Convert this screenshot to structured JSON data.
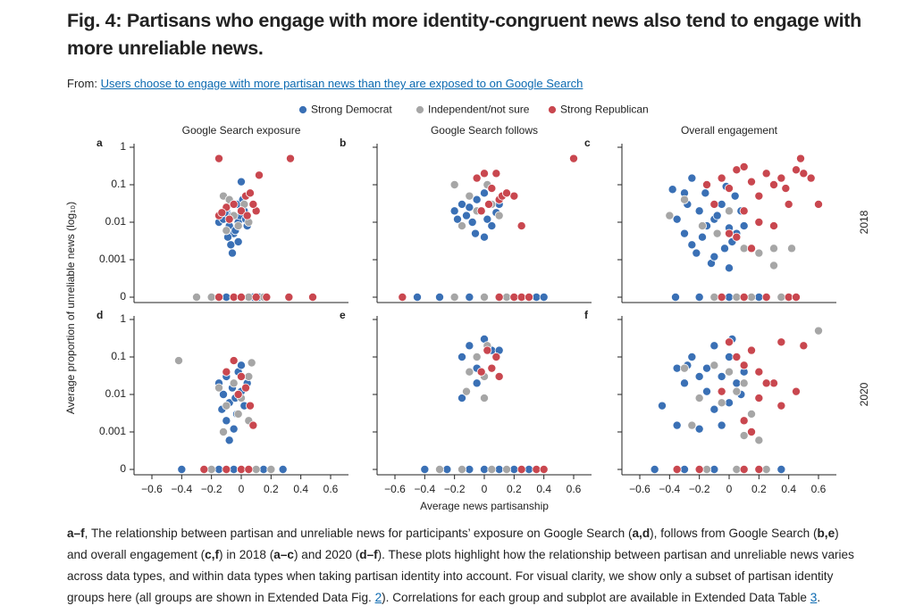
{
  "header": {
    "title": "Fig. 4: Partisans who engage with more identity-congruent news also tend to engage with more unreliable news.",
    "from_label": "From:",
    "link": "Users choose to engage with more partisan news than they are exposed to on Google Search"
  },
  "chart_data": {
    "type": "scatter",
    "yscale": "log",
    "series": [
      {
        "name": "Strong Democrat",
        "color": "#3a70b5"
      },
      {
        "name": "Independent/not sure",
        "color": "#a6a6a6"
      },
      {
        "name": "Strong Republican",
        "color": "#c9474f"
      }
    ],
    "columns": [
      "Google Search exposure",
      "Google Search follows",
      "Overall engagement"
    ],
    "rows": [
      "2018",
      "2020"
    ],
    "xlabel": "Average news partisanship",
    "ylabel": "Average proportion of unreliable news (log₁₀)",
    "xlim": [
      -0.72,
      0.72
    ],
    "xticks": [
      {
        "value": -0.6,
        "label": "−0.6"
      },
      {
        "value": -0.4,
        "label": "−0.4"
      },
      {
        "value": -0.2,
        "label": "−0.2"
      },
      0,
      0.2,
      0.4,
      0.6
    ],
    "ylim": [
      0,
      1
    ],
    "yticks": [
      0,
      0.001,
      0.01,
      0.1,
      1
    ],
    "panels": [
      {
        "label": "a",
        "points": [
          {
            "x": [
              -0.15,
              -0.12,
              -0.1,
              -0.08,
              -0.06,
              -0.05,
              -0.03,
              -0.02,
              0,
              0.02,
              0.04,
              -0.09,
              -0.07,
              -0.04,
              -0.01,
              0.01,
              -0.06,
              -0.02,
              -0.11,
              0.03,
              -0.1,
              -0.05,
              0,
              0.05,
              0.08,
              0.12
            ],
            "values": [
              0.01,
              0.012,
              0.02,
              0.008,
              0.015,
              0.005,
              0.03,
              0.01,
              0.12,
              0.02,
              0.008,
              0.004,
              0.0025,
              0.006,
              0.015,
              0.04,
              0.0015,
              0.003,
              0.018,
              0.012,
              0,
              0,
              0,
              0,
              0,
              0
            ]
          },
          {
            "x": [
              -0.12,
              -0.08,
              -0.05,
              -0.02,
              0.02,
              0.05,
              -0.1,
              0,
              -0.3,
              -0.2,
              -0.05,
              0.05,
              0.15
            ],
            "values": [
              0.05,
              0.04,
              0.015,
              0.008,
              0.03,
              0.01,
              0.006,
              0.02,
              0,
              0,
              0,
              0,
              0
            ]
          },
          {
            "x": [
              -0.15,
              -0.1,
              -0.05,
              0,
              0.03,
              0.06,
              0.1,
              0.12,
              -0.15,
              0.08,
              0.04,
              -0.08,
              -0.13,
              0.33,
              -0.15,
              -0.05,
              0,
              0.1,
              0.17,
              0.32,
              0.48
            ],
            "values": [
              0.015,
              0.025,
              0.03,
              0.02,
              0.05,
              0.06,
              0.02,
              0.18,
              0.5,
              0.03,
              0.015,
              0.012,
              0.018,
              0.5,
              0,
              0,
              0,
              0,
              0,
              0,
              0
            ]
          }
        ]
      },
      {
        "label": "b",
        "points": [
          {
            "x": [
              -0.2,
              -0.15,
              -0.12,
              -0.1,
              -0.08,
              -0.05,
              -0.03,
              0,
              0.02,
              0.05,
              0.08,
              -0.18,
              -0.06,
              0,
              0.1,
              -0.45,
              -0.3,
              -0.1,
              0,
              0.1,
              0.2,
              0.35,
              0.4
            ],
            "values": [
              0.02,
              0.03,
              0.015,
              0.025,
              0.01,
              0.04,
              0.02,
              0.06,
              0.012,
              0.008,
              0.018,
              0.012,
              0.005,
              0.004,
              0.03,
              0,
              0,
              0,
              0,
              0,
              0,
              0,
              0
            ]
          },
          {
            "x": [
              -0.2,
              -0.1,
              -0.05,
              0.02,
              0.05,
              -0.15,
              0.1,
              -0.2,
              0,
              0.15,
              0.3
            ],
            "values": [
              0.1,
              0.05,
              0.02,
              0.1,
              0.03,
              0.008,
              0.015,
              0,
              0,
              0,
              0
            ]
          },
          {
            "x": [
              -0.05,
              0,
              0.05,
              0.08,
              0.1,
              0.12,
              0.2,
              0.25,
              0.03,
              -0.02,
              0.15,
              0.6,
              -0.55,
              0.1,
              0.2,
              0.25,
              0.3
            ],
            "values": [
              0.15,
              0.2,
              0.08,
              0.2,
              0.04,
              0.05,
              0.05,
              0.008,
              0.03,
              0.02,
              0.06,
              0.5,
              0,
              0,
              0,
              0,
              0
            ]
          }
        ]
      },
      {
        "label": "c",
        "points": [
          {
            "x": [
              -0.38,
              -0.3,
              -0.3,
              -0.25,
              -0.2,
              -0.15,
              -0.1,
              -0.05,
              0,
              0.05,
              -0.35,
              -0.22,
              -0.18,
              -0.12,
              -0.08,
              -0.03,
              0.02,
              0.08,
              0.1,
              -0.28,
              -0.16,
              -0.02,
              0.04,
              -0.25,
              -0.1,
              0,
              -0.36,
              -0.2,
              -0.05,
              0,
              0.1,
              0.2
            ],
            "values": [
              0.075,
              0.06,
              0.005,
              0.15,
              0.02,
              0.008,
              0.012,
              0.03,
              0.007,
              0.005,
              0.012,
              0.0015,
              0.004,
              0.0008,
              0.015,
              0.002,
              0.003,
              0.02,
              0.008,
              0.03,
              0.06,
              0.09,
              0.05,
              0.0025,
              0.0012,
              0.0006,
              0,
              0,
              0,
              0,
              0,
              0
            ]
          },
          {
            "x": [
              -0.4,
              -0.3,
              -0.18,
              -0.08,
              0,
              0.1,
              0.2,
              0.3,
              0.42,
              0.3,
              -0.1,
              0.05,
              0.15,
              0.35
            ],
            "values": [
              0.015,
              0.04,
              0.008,
              0.005,
              0.02,
              0.002,
              0.0015,
              0.002,
              0.002,
              0.0007,
              0,
              0,
              0,
              0
            ]
          },
          {
            "x": [
              -0.15,
              -0.05,
              0,
              0.05,
              0.1,
              0.15,
              0.2,
              0.25,
              0.3,
              0.35,
              0.4,
              0.45,
              0.5,
              0.55,
              0.6,
              0.48,
              0.38,
              0.1,
              0.2,
              0.3,
              0.05,
              0.15,
              0,
              -0.1,
              -0.05,
              0.1,
              0.25,
              0.4,
              0.45
            ],
            "values": [
              0.1,
              0.15,
              0.08,
              0.25,
              0.3,
              0.12,
              0.05,
              0.2,
              0.1,
              0.15,
              0.03,
              0.25,
              0.2,
              0.15,
              0.03,
              0.5,
              0.08,
              0.02,
              0.01,
              0.008,
              0.004,
              0.002,
              0.005,
              0.03,
              0,
              0,
              0,
              0,
              0
            ]
          }
        ]
      },
      {
        "label": "d",
        "points": [
          {
            "x": [
              -0.15,
              -0.12,
              -0.1,
              -0.08,
              -0.06,
              -0.04,
              -0.02,
              0,
              0.02,
              0.04,
              -0.1,
              -0.05,
              -0.08,
              -0.03,
              -0.13,
              0,
              -0.4,
              -0.15,
              -0.05,
              0.05,
              0.15,
              0.28
            ],
            "values": [
              0.02,
              0.01,
              0.03,
              0.006,
              0.015,
              0.008,
              0.04,
              0.012,
              0.005,
              0.02,
              0.002,
              0.0012,
              0.0006,
              0.003,
              0.004,
              0.06,
              0,
              0,
              0,
              0,
              0,
              0
            ]
          },
          {
            "x": [
              -0.42,
              -0.15,
              -0.1,
              -0.05,
              0,
              0.05,
              0.07,
              -0.12,
              -0.02,
              0.05,
              -0.2,
              -0.1,
              0,
              0.1,
              0.2
            ],
            "values": [
              0.08,
              0.015,
              0.005,
              0.02,
              0.008,
              0.03,
              0.07,
              0.001,
              0.003,
              0.002,
              0,
              0,
              0,
              0,
              0
            ]
          },
          {
            "x": [
              -0.05,
              0,
              0.03,
              0.06,
              -0.02,
              0.08,
              -0.1,
              -0.25,
              -0.1,
              0,
              0.05
            ],
            "values": [
              0.08,
              0.03,
              0.015,
              0.005,
              0.01,
              0.0015,
              0.04,
              0,
              0,
              0,
              0
            ]
          }
        ]
      },
      {
        "label": "e",
        "points": [
          {
            "x": [
              -0.15,
              -0.1,
              -0.05,
              0,
              0.05,
              0.1,
              -0.15,
              -0.05,
              -0.4,
              -0.25,
              -0.1,
              0,
              0.1,
              0.2,
              0.3
            ],
            "values": [
              0.1,
              0.2,
              0.05,
              0.3,
              0.15,
              0.15,
              0.008,
              0.02,
              0,
              0,
              0,
              0,
              0,
              0,
              0
            ]
          },
          {
            "x": [
              -0.1,
              -0.05,
              0,
              0.02,
              -0.12,
              0,
              -0.3,
              -0.15,
              0.05,
              0.15
            ],
            "values": [
              0.04,
              0.1,
              0.03,
              0.2,
              0.012,
              0.008,
              0,
              0,
              0,
              0
            ]
          },
          {
            "x": [
              -0.02,
              0.02,
              0.05,
              0.08,
              0.1,
              0.25,
              0.35,
              0.4
            ],
            "values": [
              0.04,
              0.15,
              0.05,
              0.1,
              0.03,
              0,
              0,
              0
            ]
          }
        ]
      },
      {
        "label": "f",
        "points": [
          {
            "x": [
              -0.45,
              -0.35,
              -0.3,
              -0.25,
              -0.2,
              -0.15,
              -0.1,
              -0.05,
              0,
              0.05,
              0.1,
              -0.35,
              -0.2,
              -0.1,
              -0.05,
              0,
              0.08,
              -0.15,
              -0.28,
              0.02,
              -0.5,
              -0.3,
              -0.1,
              0.05,
              0.2,
              0.35
            ],
            "values": [
              0.005,
              0.05,
              0.02,
              0.1,
              0.03,
              0.05,
              0.2,
              0.03,
              0.1,
              0.02,
              0.04,
              0.0015,
              0.0012,
              0.004,
              0.0015,
              0.006,
              0.01,
              0.012,
              0.06,
              0.3,
              0,
              0,
              0,
              0,
              0,
              0
            ]
          },
          {
            "x": [
              -0.3,
              -0.2,
              -0.1,
              0,
              0.05,
              0.1,
              -0.05,
              0.15,
              0.6,
              0.2,
              -0.25,
              0.1,
              -0.15,
              0.05,
              0.25
            ],
            "values": [
              0.05,
              0.008,
              0.06,
              0.04,
              0.012,
              0.02,
              0.006,
              0.003,
              0.5,
              0.0006,
              0.0015,
              0.0008,
              0,
              0,
              0
            ]
          },
          {
            "x": [
              0,
              0.05,
              0.1,
              0.15,
              0.2,
              0.3,
              0.35,
              0.45,
              0.5,
              0.35,
              0.25,
              0.1,
              0.2,
              -0.05,
              0.15,
              -0.35,
              -0.2,
              0.1,
              0.2
            ],
            "values": [
              0.25,
              0.1,
              0.06,
              0.15,
              0.04,
              0.02,
              0.005,
              0.012,
              0.2,
              0.25,
              0.02,
              0.002,
              0.008,
              0.012,
              0.001,
              0,
              0,
              0,
              0
            ]
          }
        ]
      }
    ]
  },
  "caption": [
    {
      "text": "a–f",
      "style": "bold"
    },
    {
      "text": ", The relationship between partisan and unreliable news for participants’ exposure on Google Search ("
    },
    {
      "text": "a,d",
      "style": "bold"
    },
    {
      "text": "), follows from Google Search ("
    },
    {
      "text": "b,e",
      "style": "bold"
    },
    {
      "text": ") and overall engagement ("
    },
    {
      "text": "c,f",
      "style": "bold"
    },
    {
      "text": ") in 2018 ("
    },
    {
      "text": "a–c",
      "style": "bold"
    },
    {
      "text": ") and 2020 ("
    },
    {
      "text": "d–f",
      "style": "bold"
    },
    {
      "text": "). These plots highlight how the relationship between partisan and unreliable news varies across data types, and within data types when taking partisan identity into account. For visual clarity, we show only a subset of partisan identity groups here (all groups are shown in Extended Data Fig. "
    },
    {
      "text": "2",
      "style": "link"
    },
    {
      "text": "). Correlations for each group and subplot are available in Extended Data Table "
    },
    {
      "text": "3",
      "style": "link"
    },
    {
      "text": "."
    }
  ]
}
